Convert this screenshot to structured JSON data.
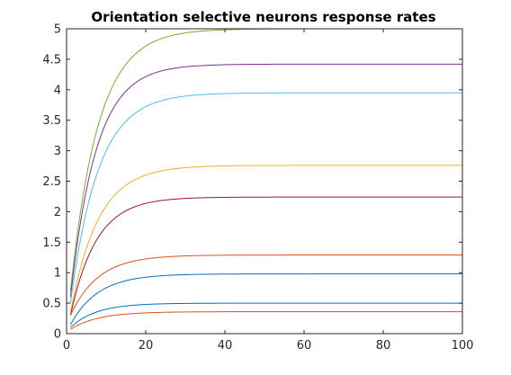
{
  "chart_data": {
    "type": "line",
    "title": "Orientation selective neurons response rates",
    "xlabel": "",
    "ylabel": "",
    "xlim": [
      0,
      100
    ],
    "ylim": [
      0,
      5
    ],
    "xticks": [
      0,
      20,
      40,
      60,
      80,
      100
    ],
    "yticks": [
      0,
      0.5,
      1,
      1.5,
      2,
      2.5,
      3,
      3.5,
      4,
      4.5,
      5
    ],
    "ytick_labels": [
      "0",
      "0.5",
      "1",
      "1.5",
      "2",
      "2.5",
      "3",
      "3.5",
      "4",
      "4.5",
      "5"
    ],
    "grid": false,
    "legend": "none",
    "x_start": 1,
    "x_end": 100,
    "series": [
      {
        "color": "#77AC30",
        "y_start": 0.7,
        "plateau": 5.0,
        "rise_constant": 7
      },
      {
        "color": "#7E2F8E",
        "y_start": 0.6,
        "plateau": 4.42,
        "rise_constant": 6.5
      },
      {
        "color": "#4DBEEE",
        "y_start": 0.5,
        "plateau": 3.95,
        "rise_constant": 7
      },
      {
        "color": "#EDB120",
        "y_start": 0.35,
        "plateau": 2.76,
        "rise_constant": 7
      },
      {
        "color": "#A2142F",
        "y_start": 0.3,
        "plateau": 2.24,
        "rise_constant": 6.5
      },
      {
        "color": "#D95319",
        "y_start": 0.3,
        "plateau": 1.29,
        "rise_constant": 7
      },
      {
        "color": "#0072BD",
        "y_start": 0.15,
        "plateau": 0.98,
        "rise_constant": 7
      },
      {
        "color": "#0072BD",
        "y_start": 0.1,
        "plateau": 0.5,
        "rise_constant": 6.5
      },
      {
        "color": "#D95319",
        "y_start": 0.07,
        "plateau": 0.36,
        "rise_constant": 7
      }
    ]
  }
}
